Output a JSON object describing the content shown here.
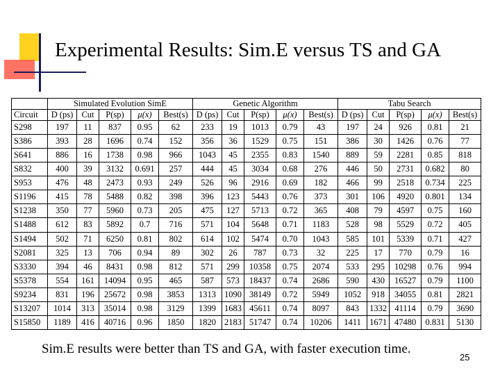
{
  "title": "Experimental Results: Sim.E versus TS and GA",
  "table": {
    "groups": [
      "Simulated Evolution SimE",
      "Genetic Algorithm",
      "Tabu Search"
    ],
    "circuit_header": "Circuit",
    "sub_headers": [
      "D (ps)",
      "Cut",
      "P(sp)",
      "μ(x)",
      "Best(s)"
    ],
    "rows": [
      [
        "S298",
        "197",
        "11",
        "837",
        "0.95",
        "62",
        "233",
        "19",
        "1013",
        "0.79",
        "43",
        "197",
        "24",
        "926",
        "0.81",
        "21"
      ],
      [
        "S386",
        "393",
        "28",
        "1696",
        "0.74",
        "152",
        "356",
        "36",
        "1529",
        "0.75",
        "151",
        "386",
        "30",
        "1426",
        "0.76",
        "77"
      ],
      [
        "S641",
        "886",
        "16",
        "1738",
        "0.98",
        "966",
        "1043",
        "45",
        "2355",
        "0.83",
        "1540",
        "889",
        "59",
        "2281",
        "0.85",
        "818"
      ],
      [
        "S832",
        "400",
        "39",
        "3132",
        "0.691",
        "257",
        "444",
        "45",
        "3034",
        "0.68",
        "276",
        "446",
        "50",
        "2731",
        "0.682",
        "80"
      ],
      [
        "S953",
        "476",
        "48",
        "2473",
        "0.93",
        "249",
        "526",
        "96",
        "2916",
        "0.69",
        "182",
        "466",
        "99",
        "2518",
        "0.734",
        "225"
      ],
      [
        "S1196",
        "415",
        "78",
        "5488",
        "0.82",
        "398",
        "396",
        "123",
        "5443",
        "0.76",
        "373",
        "301",
        "106",
        "4920",
        "0.801",
        "134"
      ],
      [
        "S1238",
        "350",
        "77",
        "5960",
        "0.73",
        "205",
        "475",
        "127",
        "5713",
        "0.72",
        "365",
        "408",
        "79",
        "4597",
        "0.75",
        "160"
      ],
      [
        "S1488",
        "612",
        "83",
        "5892",
        "0.7",
        "716",
        "571",
        "104",
        "5648",
        "0.71",
        "1183",
        "528",
        "98",
        "5529",
        "0.72",
        "405"
      ],
      [
        "S1494",
        "502",
        "71",
        "6250",
        "0.81",
        "802",
        "614",
        "102",
        "5474",
        "0.70",
        "1043",
        "585",
        "101",
        "5339",
        "0.71",
        "427"
      ],
      [
        "S2081",
        "325",
        "13",
        "706",
        "0.94",
        "89",
        "302",
        "26",
        "787",
        "0.73",
        "32",
        "225",
        "17",
        "770",
        "0.79",
        "16"
      ],
      [
        "S3330",
        "394",
        "46",
        "8431",
        "0.98",
        "812",
        "571",
        "299",
        "10358",
        "0.75",
        "2074",
        "533",
        "295",
        "10298",
        "0.76",
        "994"
      ],
      [
        "S5378",
        "554",
        "161",
        "14094",
        "0.95",
        "465",
        "587",
        "573",
        "18437",
        "0.74",
        "2686",
        "590",
        "430",
        "16527",
        "0.79",
        "1100"
      ],
      [
        "S9234",
        "831",
        "196",
        "25672",
        "0.98",
        "3853",
        "1313",
        "1090",
        "38149",
        "0.72",
        "5949",
        "1052",
        "918",
        "34055",
        "0.81",
        "2821"
      ],
      [
        "S13207",
        "1014",
        "313",
        "35014",
        "0.98",
        "3129",
        "1399",
        "1683",
        "45611",
        "0.74",
        "8097",
        "843",
        "1332",
        "41114",
        "0.79",
        "3690"
      ],
      [
        "S15850",
        "1189",
        "416",
        "40716",
        "0.96",
        "1850",
        "1820",
        "2183",
        "51747",
        "0.74",
        "10206",
        "1411",
        "1671",
        "47480",
        "0.831",
        "5130"
      ]
    ]
  },
  "footer": "Sim.E results were better than TS and GA, with faster execution time.",
  "page_number": "25"
}
